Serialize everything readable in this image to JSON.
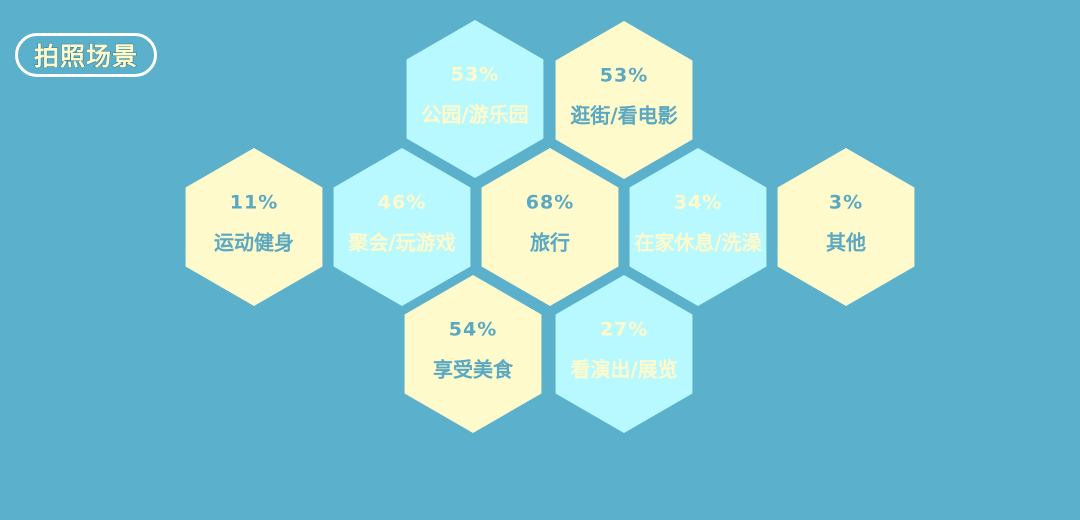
{
  "title": "拍照场景",
  "colors": {
    "background": "#5bb1cc",
    "yellow_fill": "#fffacb",
    "cyan_fill": "#b8f9ff",
    "yellow_text": "#5aa8c2",
    "cyan_text": "#fffacb"
  },
  "chart_data": {
    "type": "hexagon-tiles",
    "unit": "%",
    "categories": [
      {
        "label": "公园/游乐园",
        "value": 53,
        "color": "cyan"
      },
      {
        "label": "逛街/看电影",
        "value": 53,
        "color": "yellow"
      },
      {
        "label": "运动健身",
        "value": 11,
        "color": "yellow"
      },
      {
        "label": "聚会/玩游戏",
        "value": 46,
        "color": "cyan"
      },
      {
        "label": "旅行",
        "value": 68,
        "color": "yellow"
      },
      {
        "label": "在家休息/洗澡",
        "value": 34,
        "color": "cyan"
      },
      {
        "label": "其他",
        "value": 3,
        "color": "yellow"
      },
      {
        "label": "享受美食",
        "value": 54,
        "color": "yellow"
      },
      {
        "label": "看演出/展览",
        "value": 27,
        "color": "cyan"
      }
    ]
  }
}
